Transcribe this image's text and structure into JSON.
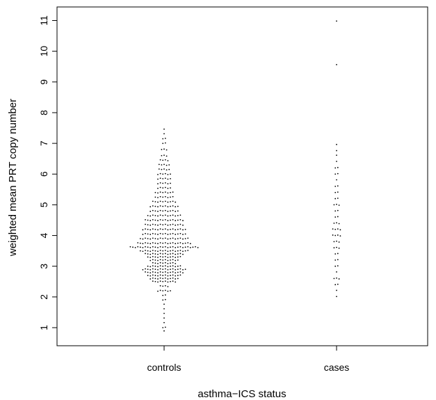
{
  "chart_data": {
    "type": "scatter",
    "subtype": "beeswarm",
    "title": "",
    "xlabel": "asthma−ICS status",
    "ylabel": "weighted mean PRT copy number",
    "categories": [
      "controls",
      "cases"
    ],
    "ylim": [
      0.5,
      11.6
    ],
    "yticks": [
      1,
      2,
      3,
      4,
      5,
      6,
      7,
      8,
      9,
      10,
      11
    ],
    "grid": false,
    "legend": "none",
    "point_color": "#000000",
    "series": [
      {
        "category": "controls",
        "distribution": [
          [
            0.88,
            1
          ],
          [
            1.0,
            2
          ],
          [
            1.15,
            1
          ],
          [
            1.3,
            1
          ],
          [
            1.45,
            1
          ],
          [
            1.6,
            1
          ],
          [
            1.75,
            1
          ],
          [
            1.9,
            2
          ],
          [
            2.05,
            2
          ],
          [
            2.2,
            6
          ],
          [
            2.35,
            4
          ],
          [
            2.5,
            10
          ],
          [
            2.6,
            12
          ],
          [
            2.7,
            14
          ],
          [
            2.8,
            16
          ],
          [
            2.9,
            18
          ],
          [
            3.0,
            14
          ],
          [
            3.1,
            10
          ],
          [
            3.2,
            12
          ],
          [
            3.3,
            14
          ],
          [
            3.4,
            16
          ],
          [
            3.5,
            20
          ],
          [
            3.62,
            28
          ],
          [
            3.75,
            22
          ],
          [
            3.9,
            20
          ],
          [
            4.05,
            18
          ],
          [
            4.2,
            18
          ],
          [
            4.35,
            16
          ],
          [
            4.5,
            16
          ],
          [
            4.65,
            14
          ],
          [
            4.8,
            12
          ],
          [
            4.95,
            12
          ],
          [
            5.1,
            10
          ],
          [
            5.25,
            8
          ],
          [
            5.4,
            8
          ],
          [
            5.55,
            6
          ],
          [
            5.7,
            6
          ],
          [
            5.85,
            6
          ],
          [
            6.0,
            6
          ],
          [
            6.15,
            5
          ],
          [
            6.3,
            5
          ],
          [
            6.45,
            4
          ],
          [
            6.6,
            3
          ],
          [
            6.8,
            3
          ],
          [
            7.0,
            2
          ],
          [
            7.15,
            2
          ],
          [
            7.3,
            1
          ],
          [
            7.45,
            1
          ]
        ]
      },
      {
        "category": "cases",
        "distribution": [
          [
            2.0,
            1
          ],
          [
            2.2,
            1
          ],
          [
            2.4,
            2
          ],
          [
            2.6,
            3
          ],
          [
            2.8,
            1
          ],
          [
            3.0,
            2
          ],
          [
            3.2,
            2
          ],
          [
            3.4,
            2
          ],
          [
            3.6,
            3
          ],
          [
            3.8,
            3
          ],
          [
            4.0,
            4
          ],
          [
            4.2,
            4
          ],
          [
            4.4,
            3
          ],
          [
            4.6,
            2
          ],
          [
            4.8,
            2
          ],
          [
            5.0,
            3
          ],
          [
            5.2,
            2
          ],
          [
            5.4,
            2
          ],
          [
            5.6,
            2
          ],
          [
            5.8,
            1
          ],
          [
            6.0,
            2
          ],
          [
            6.2,
            2
          ],
          [
            6.4,
            1
          ],
          [
            6.6,
            1
          ],
          [
            6.75,
            1
          ],
          [
            6.95,
            1
          ],
          [
            9.55,
            1
          ],
          [
            10.97,
            1
          ]
        ]
      }
    ]
  }
}
